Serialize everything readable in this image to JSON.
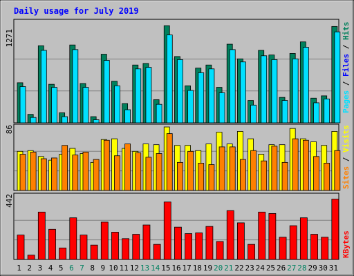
{
  "chart_data": {
    "type": "bar",
    "title": "Daily usage for July 2019",
    "x": [
      "1",
      "2",
      "3",
      "4",
      "5",
      "6",
      "7",
      "8",
      "9",
      "10",
      "11",
      "12",
      "13",
      "14",
      "15",
      "16",
      "17",
      "18",
      "19",
      "20",
      "21",
      "22",
      "23",
      "24",
      "25",
      "26",
      "27",
      "28",
      "29",
      "30",
      "31"
    ],
    "weekend_days": [
      "6",
      "7",
      "13",
      "14",
      "20",
      "21",
      "27",
      "28"
    ],
    "panels": [
      {
        "id": "hits",
        "max_label": "1271",
        "ymax": 1271,
        "series": [
          {
            "name": "Hits",
            "color": "#00805c",
            "values": [
              520,
              110,
              1000,
              500,
              130,
              1010,
              510,
              80,
              890,
              540,
              250,
              750,
              770,
              300,
              1260,
              860,
              480,
              710,
              750,
              460,
              1020,
              830,
              290,
              940,
              880,
              330,
              900,
              1050,
              320,
              350,
              1250
            ]
          },
          {
            "name": "Files",
            "color": "#0000ff",
            "values": [
              470,
              70,
              940,
              460,
              80,
              950,
              460,
              40,
              810,
              480,
              170,
              700,
              720,
              240,
              1140,
              820,
              420,
              650,
              700,
              390,
              950,
              790,
              230,
              870,
              820,
              290,
              830,
              980,
              260,
              310,
              1180
            ]
          },
          {
            "name": "Pages",
            "color": "#00e0ff",
            "values": [
              470,
              70,
              940,
              460,
              80,
              950,
              460,
              40,
              810,
              480,
              170,
              700,
              720,
              240,
              1140,
              820,
              420,
              650,
              700,
              390,
              950,
              790,
              230,
              870,
              820,
              290,
              830,
              980,
              260,
              310,
              1180
            ]
          }
        ]
      },
      {
        "id": "visits",
        "max_label": "86",
        "ymax": 86,
        "series": [
          {
            "name": "Visits",
            "color": "#ffff00",
            "values": [
              53,
              54,
              46,
              41,
              49,
              57,
              50,
              38,
              69,
              70,
              57,
              53,
              63,
              62,
              86,
              61,
              61,
              54,
              63,
              79,
              63,
              80,
              70,
              49,
              62,
              62,
              84,
              70,
              66,
              61,
              80
            ]
          },
          {
            "name": "Sites",
            "color": "#ff8000",
            "values": [
              49,
              52,
              43,
              44,
              61,
              48,
              52,
              42,
              68,
              47,
              63,
              51,
              45,
              50,
              77,
              38,
              53,
              37,
              35,
              59,
              59,
              42,
              54,
              40,
              60,
              38,
              70,
              68,
              46,
              37,
              54
            ]
          }
        ]
      },
      {
        "id": "kbytes",
        "max_label": "442",
        "ymax": 442,
        "series": [
          {
            "name": "KBytes",
            "color": "#ff0000",
            "values": [
              170,
              30,
              330,
              210,
              80,
              290,
              170,
              100,
              260,
              190,
              145,
              175,
              240,
              105,
              400,
              225,
              180,
              185,
              230,
              125,
              340,
              255,
              105,
              330,
              320,
              155,
              235,
              290,
              175,
              155,
              420
            ]
          }
        ]
      }
    ],
    "legend_labels": {
      "hits": [
        {
          "text": "Pages",
          "color": "#00e0ff"
        },
        {
          "text": "Files",
          "color": "#0000ff"
        },
        {
          "text": "Hits",
          "color": "#00805c"
        }
      ],
      "visits": [
        {
          "text": "Sites",
          "color": "#ff8000"
        },
        {
          "text": "Visits",
          "color": "#ffff00"
        }
      ],
      "kbytes": [
        {
          "text": "KBytes",
          "color": "#ff0000"
        }
      ]
    }
  }
}
